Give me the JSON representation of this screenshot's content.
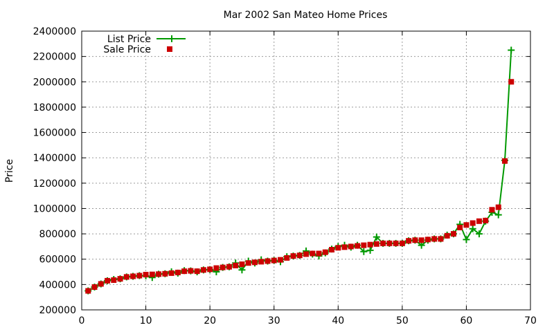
{
  "chart_data": {
    "type": "line",
    "title": "Mar 2002 San Mateo Home Prices",
    "xlabel": "",
    "ylabel": "Price",
    "xlim": [
      0,
      70
    ],
    "ylim": [
      200000,
      2400000
    ],
    "x_ticks": [
      0,
      10,
      20,
      30,
      40,
      50,
      60,
      70
    ],
    "y_ticks": [
      200000,
      400000,
      600000,
      800000,
      1000000,
      1200000,
      1400000,
      1600000,
      1800000,
      2000000,
      2200000,
      2400000
    ],
    "grid": true,
    "legend_position": "top-left",
    "series": [
      {
        "name": "List Price",
        "style": "line-with-plus-markers",
        "color": "#009900",
        "x": [
          1,
          2,
          3,
          4,
          5,
          6,
          7,
          8,
          9,
          10,
          11,
          12,
          13,
          14,
          15,
          16,
          17,
          18,
          19,
          20,
          21,
          22,
          23,
          24,
          25,
          26,
          27,
          28,
          29,
          30,
          31,
          32,
          33,
          34,
          35,
          36,
          37,
          38,
          39,
          40,
          41,
          42,
          43,
          44,
          45,
          46,
          47,
          48,
          49,
          50,
          51,
          52,
          53,
          54,
          55,
          56,
          57,
          58,
          59,
          60,
          61,
          62,
          63,
          64,
          65,
          66,
          67
        ],
        "values": [
          350000,
          380000,
          405000,
          430000,
          440000,
          445000,
          460000,
          465000,
          470000,
          468000,
          455000,
          482000,
          485000,
          500000,
          490000,
          510000,
          508000,
          500000,
          515000,
          518000,
          500000,
          535000,
          540000,
          570000,
          515000,
          585000,
          570000,
          595000,
          585000,
          590000,
          580000,
          620000,
          625000,
          630000,
          665000,
          640000,
          625000,
          650000,
          680000,
          700000,
          710000,
          695000,
          710000,
          660000,
          670000,
          775000,
          725000,
          725000,
          725000,
          725000,
          745000,
          750000,
          710000,
          750000,
          760000,
          760000,
          790000,
          800000,
          875000,
          755000,
          840000,
          800000,
          900000,
          970000,
          950000,
          1380000,
          2250000
        ]
      },
      {
        "name": "Sale Price",
        "style": "square-markers",
        "color": "#cc0000",
        "x": [
          1,
          2,
          3,
          4,
          5,
          6,
          7,
          8,
          9,
          10,
          11,
          12,
          13,
          14,
          15,
          16,
          17,
          18,
          19,
          20,
          21,
          22,
          23,
          24,
          25,
          26,
          27,
          28,
          29,
          30,
          31,
          32,
          33,
          34,
          35,
          36,
          37,
          38,
          39,
          40,
          41,
          42,
          43,
          44,
          45,
          46,
          47,
          48,
          49,
          50,
          51,
          52,
          53,
          54,
          55,
          56,
          57,
          58,
          59,
          60,
          61,
          62,
          63,
          64,
          65,
          66,
          67
        ],
        "values": [
          350000,
          380000,
          405000,
          430000,
          435000,
          445000,
          460000,
          465000,
          470000,
          478000,
          480000,
          482000,
          485000,
          490000,
          495000,
          505000,
          508000,
          505000,
          515000,
          520000,
          530000,
          535000,
          540000,
          550000,
          560000,
          570000,
          575000,
          580000,
          585000,
          590000,
          595000,
          610000,
          625000,
          630000,
          640000,
          645000,
          645000,
          655000,
          675000,
          690000,
          695000,
          700000,
          705000,
          710000,
          715000,
          720000,
          725000,
          725000,
          725000,
          725000,
          745000,
          750000,
          750000,
          755000,
          760000,
          760000,
          785000,
          800000,
          850000,
          870000,
          885000,
          900000,
          905000,
          990000,
          1010000,
          1375000,
          2000000
        ]
      }
    ]
  }
}
